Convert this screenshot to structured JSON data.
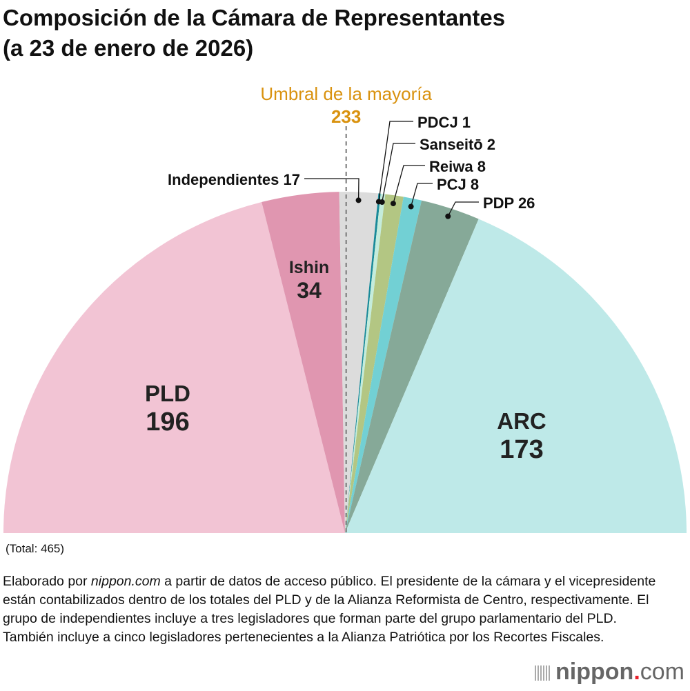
{
  "title_line1": "Composición de la Cámara de Representantes",
  "title_line2": "(a 23 de enero de 2026)",
  "chart_data": {
    "type": "pie",
    "subtype": "semicircle",
    "total_label": "(Total: 465)",
    "total": 465,
    "majority": {
      "label": "Umbral de la mayoría",
      "value": 233,
      "color": "#d9920f"
    },
    "slices": [
      {
        "name": "PLD",
        "value": 196,
        "color": "#f2c4d4",
        "label_style": "inside"
      },
      {
        "name": "Ishin",
        "value": 34,
        "color": "#e096b0",
        "label_style": "inside"
      },
      {
        "name": "Independientes",
        "value": 17,
        "color": "#dcdcdc",
        "label_style": "callout"
      },
      {
        "name": "PDCJ",
        "value": 1,
        "color": "#1a8a99",
        "label_style": "callout"
      },
      {
        "name": "Sanseitō",
        "value": 2,
        "color": "#c4ecdc",
        "label_style": "callout"
      },
      {
        "name": "Reiwa",
        "value": 8,
        "color": "#b3c683",
        "label_style": "callout"
      },
      {
        "name": "PCJ",
        "value": 8,
        "color": "#72d0d4",
        "label_style": "callout"
      },
      {
        "name": "PDP",
        "value": 26,
        "color": "#86a998",
        "label_style": "callout"
      },
      {
        "name": "ARC",
        "value": 173,
        "color": "#bee9e8",
        "label_style": "inside"
      }
    ]
  },
  "footnote_prefix": "Elaborado por ",
  "footnote_source": "nippon.com",
  "footnote_rest": " a partir de datos de acceso público. El presidente de la cámara y el vicepresidente están contabilizados dentro de los totales del PLD y de la Alianza Reformista de Centro, respectivamente. El grupo de independientes incluye a tres legisladores que forman parte del grupo parlamentario del PLD. También incluye a cinco legisladores pertenecientes a la Alianza Patriótica por los Recortes Fiscales.",
  "logo": {
    "name": "nippon",
    "dot": ".",
    "tld": "com"
  }
}
